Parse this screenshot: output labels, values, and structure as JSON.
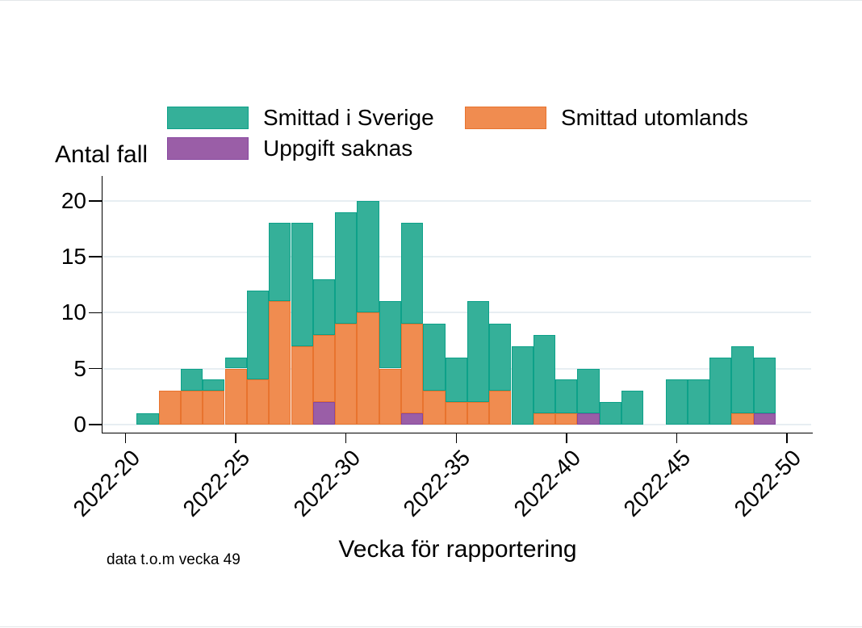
{
  "chart": {
    "ylabel": "Antal fall",
    "xlabel": "Vecka för rapportering",
    "note": "data t.o.m vecka 49"
  },
  "chart_data": {
    "type": "bar",
    "stacked": true,
    "title": "",
    "ylabel": "Antal fall",
    "xlabel": "Vecka för rapportering",
    "note": "data t.o.m vecka 49",
    "ylim": [
      0,
      20
    ],
    "y_ticks": [
      0,
      5,
      10,
      15,
      20
    ],
    "y_tick_labels": [
      "0",
      "5",
      "10",
      "15",
      "20"
    ],
    "x_tick_weeks": [
      20,
      25,
      30,
      35,
      40,
      45,
      50
    ],
    "x_tick_labels": [
      "2022-20",
      "2022-25",
      "2022-30",
      "2022-35",
      "2022-40",
      "2022-45",
      "2022-50"
    ],
    "grid": "horizontal",
    "legend_position": "top",
    "categories": [
      "2022-21",
      "2022-22",
      "2022-23",
      "2022-24",
      "2022-25",
      "2022-26",
      "2022-27",
      "2022-28",
      "2022-29",
      "2022-30",
      "2022-31",
      "2022-32",
      "2022-33",
      "2022-34",
      "2022-35",
      "2022-36",
      "2022-37",
      "2022-38",
      "2022-39",
      "2022-40",
      "2022-41",
      "2022-42",
      "2022-43",
      "2022-44",
      "2022-45",
      "2022-46",
      "2022-47",
      "2022-48",
      "2022-49"
    ],
    "series": [
      {
        "key": "sverige",
        "name": "Smittad i Sverige",
        "fill": "#35B099",
        "stroke": "#0DA189",
        "values": [
          1,
          0,
          2,
          1,
          1,
          8,
          7,
          11,
          5,
          10,
          10,
          6,
          9,
          6,
          4,
          9,
          6,
          7,
          7,
          3,
          4,
          2,
          3,
          0,
          4,
          4,
          6,
          6,
          5
        ]
      },
      {
        "key": "utomlands",
        "name": "Smittad utomlands",
        "fill": "#F08C50",
        "stroke": "#E8732E",
        "values": [
          0,
          3,
          3,
          3,
          5,
          4,
          11,
          7,
          6,
          9,
          10,
          5,
          8,
          3,
          2,
          2,
          3,
          0,
          1,
          1,
          0,
          0,
          0,
          0,
          0,
          0,
          0,
          1,
          0
        ]
      },
      {
        "key": "saknas",
        "name": "Uppgift saknas",
        "fill": "#9A5EA7",
        "stroke": "#8748A0",
        "values": [
          0,
          0,
          0,
          0,
          0,
          0,
          0,
          0,
          2,
          0,
          0,
          0,
          1,
          0,
          0,
          0,
          0,
          0,
          0,
          0,
          1,
          0,
          0,
          0,
          0,
          0,
          0,
          0,
          1
        ]
      }
    ],
    "stack_order_bottom_to_top": [
      "saknas",
      "utomlands",
      "sverige"
    ],
    "colors": {
      "gridline": "#e7eef2",
      "axis": "#000000",
      "background": "#ffffff"
    }
  }
}
